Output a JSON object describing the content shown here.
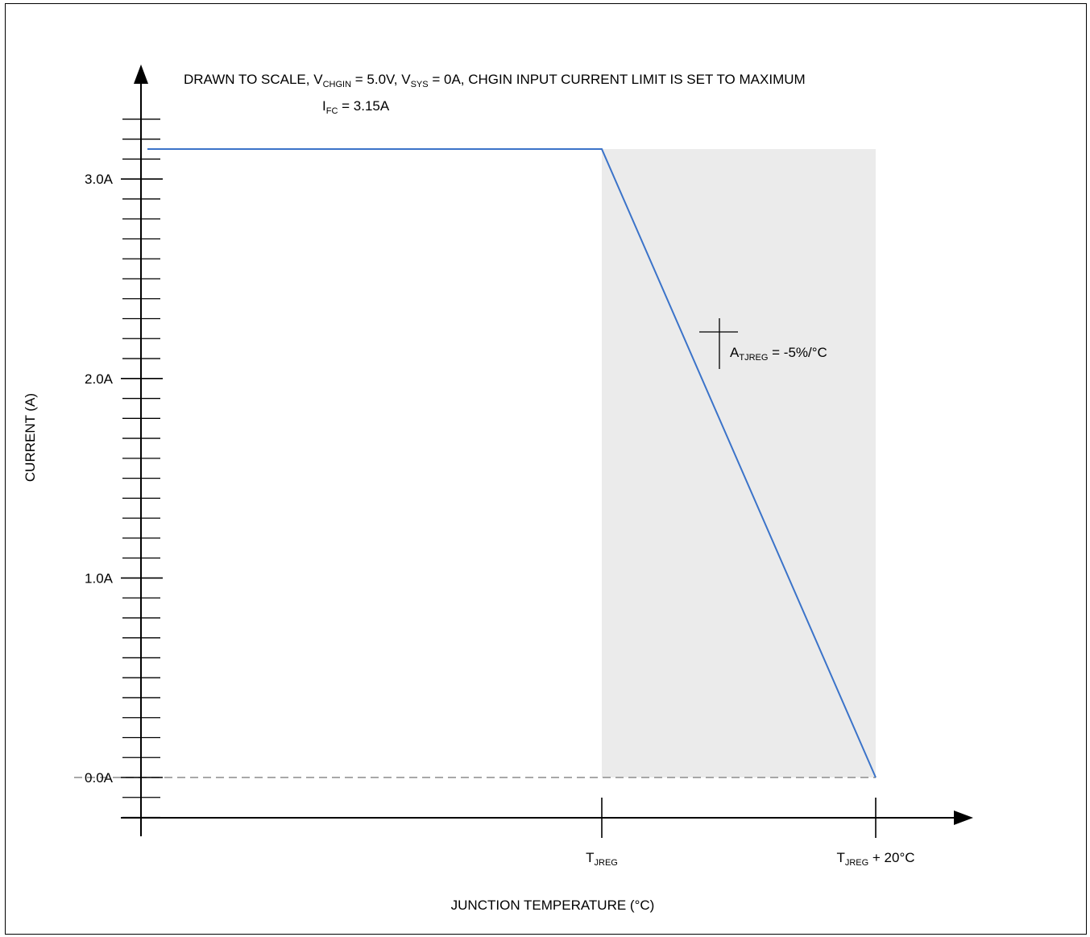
{
  "chart_data": {
    "type": "line",
    "title": {
      "drawn": "DRAWN TO SCALE, ",
      "v1": "V",
      "v1_sub": "CHGIN",
      "v1_val": " = 5.0V, ",
      "v2": "V",
      "v2_sub": "SYS",
      "v2_val": " = 0A, CHGIN INPUT CURRENT LIMIT IS SET TO MAXIMUM"
    },
    "xlabel": "JUNCTION TEMPERATURE (°C)",
    "ylabel": "CURRENT (A)",
    "ylim": [
      -0.2,
      3.3
    ],
    "y_ticks": [
      "0.0A",
      "1.0A",
      "2.0A",
      "3.0A"
    ],
    "y_tick_values": [
      0,
      1,
      2,
      3
    ],
    "y_minor_step": 0.1,
    "x_ticks": [
      {
        "main": "T",
        "sub": "JREG",
        "suffix": "",
        "x": 0
      },
      {
        "main": "T",
        "sub": "JREG",
        "suffix": " + 20°C",
        "x": 20
      }
    ],
    "xlim": [
      -40,
      28
    ],
    "series": [
      {
        "x": [
          -40,
          0,
          20
        ],
        "y": [
          3.15,
          3.15,
          0
        ]
      }
    ],
    "shaded_region": {
      "x": [
        0,
        20
      ],
      "y": [
        0,
        3.15
      ]
    },
    "baseline": {
      "x": [
        -40,
        20
      ],
      "y": [
        0,
        0
      ]
    },
    "annotations": {
      "ifc": {
        "main": "I",
        "sub": "FC",
        "rest": " = 3.15A"
      },
      "slope": {
        "main": "A",
        "sub": "TJREG",
        "rest": " = -5%/°C"
      }
    },
    "colors": {
      "line": "#3b73c9",
      "shade": "#ebebeb",
      "baseline": "#8c8c8c",
      "axis": "#000000"
    }
  }
}
